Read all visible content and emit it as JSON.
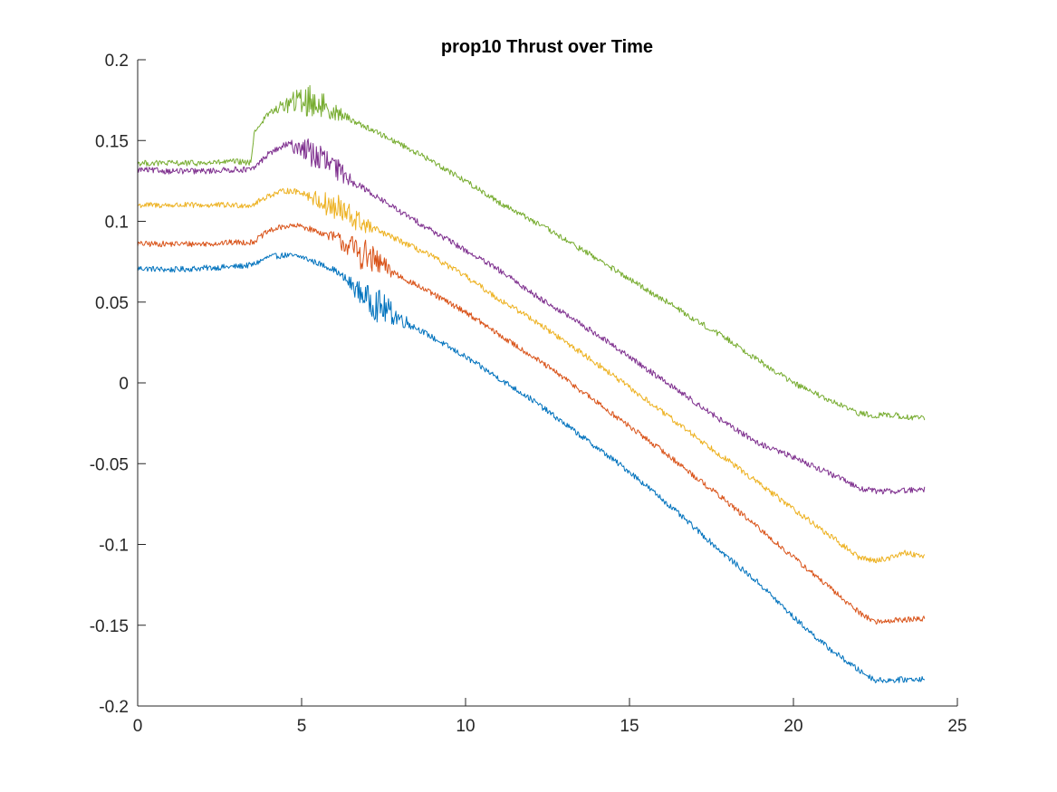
{
  "chart_data": {
    "type": "line",
    "title": "prop10 Thrust over Time",
    "xlabel": "",
    "ylabel": "",
    "xlim": [
      0,
      25
    ],
    "ylim": [
      -0.2,
      0.2
    ],
    "x_ticks": [
      0,
      5,
      10,
      15,
      20,
      25
    ],
    "y_ticks": [
      0.2,
      0.15,
      0.1,
      0.05,
      0,
      -0.05,
      -0.1,
      -0.15,
      -0.2
    ],
    "x_tick_labels": [
      "0",
      "5",
      "10",
      "15",
      "20",
      "25"
    ],
    "y_tick_labels": [
      "0.2",
      "0.15",
      "0.1",
      "0.05",
      "0",
      "-0.05",
      "-0.1",
      "-0.15",
      "-0.2"
    ],
    "grid": false,
    "legend": "none",
    "series": [
      {
        "color": "#0072BD",
        "x": [
          0,
          1,
          2,
          3,
          3.5,
          4,
          4.5,
          5,
          6,
          7,
          8,
          9,
          10,
          11,
          12,
          13,
          14,
          15,
          16,
          17,
          18,
          19,
          20,
          21,
          22,
          22.5,
          23,
          24
        ],
        "y": [
          0.071,
          0.07,
          0.071,
          0.072,
          0.073,
          0.078,
          0.079,
          0.078,
          0.07,
          0.052,
          0.04,
          0.028,
          0.016,
          0.003,
          -0.01,
          -0.025,
          -0.04,
          -0.055,
          -0.072,
          -0.09,
          -0.108,
          -0.125,
          -0.145,
          -0.163,
          -0.178,
          -0.184,
          -0.184,
          -0.183
        ]
      },
      {
        "color": "#D95319",
        "x": [
          0,
          1,
          2,
          3,
          3.5,
          4,
          4.5,
          5,
          6,
          7,
          8,
          9,
          10,
          11,
          12,
          13,
          14,
          15,
          16,
          17,
          18,
          19,
          20,
          21,
          22,
          22.5,
          23,
          24
        ],
        "y": [
          0.086,
          0.086,
          0.086,
          0.087,
          0.087,
          0.094,
          0.097,
          0.097,
          0.09,
          0.078,
          0.066,
          0.055,
          0.044,
          0.03,
          0.017,
          0.003,
          -0.012,
          -0.027,
          -0.042,
          -0.058,
          -0.074,
          -0.091,
          -0.108,
          -0.125,
          -0.142,
          -0.148,
          -0.147,
          -0.146
        ]
      },
      {
        "color": "#EDB120",
        "x": [
          0,
          1,
          2,
          3,
          3.5,
          4,
          4.5,
          5,
          6,
          7,
          8,
          9,
          10,
          11,
          12,
          13,
          14,
          15,
          16,
          17,
          18,
          19,
          20,
          21,
          22,
          22.5,
          23,
          23.3,
          24
        ],
        "y": [
          0.11,
          0.11,
          0.11,
          0.11,
          0.11,
          0.116,
          0.119,
          0.118,
          0.108,
          0.097,
          0.088,
          0.078,
          0.066,
          0.052,
          0.04,
          0.026,
          0.012,
          -0.003,
          -0.018,
          -0.033,
          -0.048,
          -0.063,
          -0.078,
          -0.093,
          -0.108,
          -0.11,
          -0.108,
          -0.105,
          -0.107
        ]
      },
      {
        "color": "#7E2F8E",
        "x": [
          0,
          1,
          2,
          3,
          3.5,
          4,
          4.5,
          5,
          6,
          7,
          8,
          9,
          10,
          11,
          12,
          13,
          14,
          15,
          16,
          17,
          18,
          19,
          20,
          21,
          22,
          22.5,
          23,
          24
        ],
        "y": [
          0.132,
          0.131,
          0.131,
          0.132,
          0.132,
          0.142,
          0.147,
          0.146,
          0.133,
          0.119,
          0.106,
          0.094,
          0.082,
          0.07,
          0.056,
          0.043,
          0.03,
          0.016,
          0.002,
          -0.012,
          -0.026,
          -0.038,
          -0.046,
          -0.055,
          -0.065,
          -0.067,
          -0.067,
          -0.066
        ]
      },
      {
        "color": "#77AC30",
        "x": [
          0,
          1,
          2,
          3,
          3.45,
          3.55,
          4,
          4.5,
          5,
          5.5,
          6,
          7,
          8,
          9,
          10,
          11,
          12,
          13,
          14,
          15,
          16,
          17,
          18,
          19,
          20,
          21,
          22,
          22.5,
          23,
          24
        ],
        "y": [
          0.136,
          0.136,
          0.136,
          0.137,
          0.136,
          0.155,
          0.167,
          0.172,
          0.175,
          0.173,
          0.168,
          0.158,
          0.148,
          0.137,
          0.125,
          0.112,
          0.101,
          0.089,
          0.077,
          0.064,
          0.052,
          0.039,
          0.027,
          0.013,
          0.0,
          -0.01,
          -0.019,
          -0.02,
          -0.02,
          -0.022
        ]
      }
    ]
  }
}
